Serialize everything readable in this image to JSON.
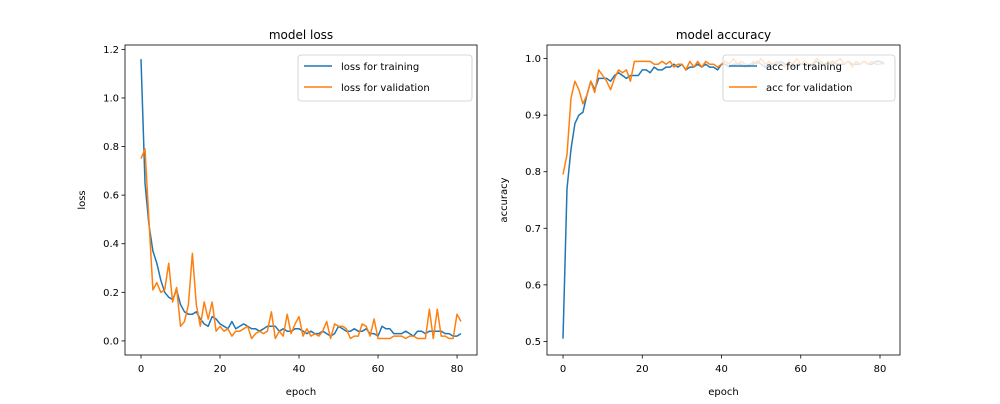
{
  "chart_data": [
    {
      "type": "line",
      "title": "model loss",
      "xlabel": "epoch",
      "ylabel": "loss",
      "xlim": [
        -4.05,
        85.05
      ],
      "ylim": [
        -0.058,
        1.218
      ],
      "xticks": [
        0,
        20,
        40,
        60,
        80
      ],
      "yticks": [
        0.0,
        0.2,
        0.4,
        0.6,
        0.8,
        1.0,
        1.2
      ],
      "ytick_labels": [
        "0.0",
        "0.2",
        "0.4",
        "0.6",
        "0.8",
        "1.0",
        "1.2"
      ],
      "legend": "top-right",
      "grid": false,
      "series": [
        {
          "name": "loss for training",
          "color": "#1f77b4",
          "values": [
            1.16,
            0.65,
            0.48,
            0.37,
            0.32,
            0.25,
            0.2,
            0.18,
            0.17,
            0.21,
            0.15,
            0.12,
            0.11,
            0.11,
            0.12,
            0.09,
            0.07,
            0.06,
            0.1,
            0.09,
            0.07,
            0.06,
            0.05,
            0.08,
            0.05,
            0.06,
            0.07,
            0.06,
            0.05,
            0.05,
            0.04,
            0.05,
            0.06,
            0.06,
            0.06,
            0.04,
            0.05,
            0.04,
            0.04,
            0.05,
            0.05,
            0.04,
            0.03,
            0.04,
            0.03,
            0.03,
            0.04,
            0.03,
            0.02,
            0.03,
            0.06,
            0.05,
            0.04,
            0.04,
            0.05,
            0.04,
            0.04,
            0.05,
            0.03,
            0.03,
            0.02,
            0.06,
            0.05,
            0.05,
            0.03,
            0.03,
            0.03,
            0.04,
            0.03,
            0.02,
            0.04,
            0.04,
            0.03,
            0.04,
            0.04,
            0.04,
            0.04,
            0.03,
            0.03,
            0.02,
            0.02,
            0.03
          ]
        },
        {
          "name": "loss for validation",
          "color": "#ff7f0e",
          "values": [
            0.75,
            0.79,
            0.5,
            0.21,
            0.24,
            0.2,
            0.21,
            0.32,
            0.16,
            0.22,
            0.06,
            0.08,
            0.15,
            0.36,
            0.15,
            0.06,
            0.16,
            0.09,
            0.16,
            0.04,
            0.06,
            0.04,
            0.05,
            0.02,
            0.04,
            0.04,
            0.05,
            0.06,
            0.01,
            0.03,
            0.04,
            0.03,
            0.04,
            0.12,
            0.01,
            0.04,
            0.02,
            0.11,
            0.03,
            0.07,
            0.1,
            0.02,
            0.05,
            0.02,
            0.03,
            0.02,
            0.04,
            0.08,
            0.01,
            0.07,
            0.06,
            0.06,
            0.05,
            0.01,
            0.02,
            0.02,
            0.07,
            0.06,
            0.02,
            0.09,
            0.01,
            0.01,
            0.01,
            0.01,
            0.02,
            0.02,
            0.02,
            0.01,
            0.02,
            0.02,
            0.01,
            0.01,
            0.01,
            0.13,
            0.01,
            0.13,
            0.02,
            0.02,
            0.01,
            0.01,
            0.11,
            0.08
          ]
        }
      ]
    },
    {
      "type": "line",
      "title": "model accuracy",
      "xlabel": "epoch",
      "ylabel": "accuracy",
      "xlim": [
        -4.05,
        85.05
      ],
      "ylim": [
        0.476,
        1.024
      ],
      "xticks": [
        0,
        20,
        40,
        60,
        80
      ],
      "yticks": [
        0.5,
        0.6,
        0.7,
        0.8,
        0.9,
        1.0
      ],
      "ytick_labels": [
        "0.5",
        "0.6",
        "0.7",
        "0.8",
        "0.9",
        "1.0"
      ],
      "legend": "top-right",
      "grid": false,
      "series": [
        {
          "name": "acc for training",
          "color": "#1f77b4",
          "values": [
            0.505,
            0.77,
            0.84,
            0.885,
            0.9,
            0.905,
            0.935,
            0.96,
            0.945,
            0.965,
            0.965,
            0.965,
            0.96,
            0.97,
            0.975,
            0.97,
            0.965,
            0.97,
            0.97,
            0.97,
            0.98,
            0.98,
            0.975,
            0.985,
            0.98,
            0.98,
            0.985,
            0.985,
            0.99,
            0.985,
            0.99,
            0.98,
            0.985,
            0.985,
            0.99,
            0.985,
            0.99,
            0.985,
            0.985,
            0.98,
            0.99,
            0.99,
            0.985,
            0.99,
            0.99,
            0.99,
            0.985,
            0.99,
            0.99,
            0.995,
            0.99,
            0.985,
            0.99,
            0.99,
            0.99,
            0.995,
            0.99,
            0.99,
            0.985,
            0.99,
            0.99,
            0.99,
            0.985,
            0.99,
            0.995,
            0.99,
            0.99,
            0.99,
            0.995,
            0.99,
            0.99,
            0.99,
            0.995,
            0.99,
            0.99,
            0.99,
            0.995,
            0.99,
            0.99,
            0.995,
            0.995,
            0.99
          ]
        },
        {
          "name": "acc for validation",
          "color": "#ff7f0e",
          "values": [
            0.795,
            0.83,
            0.93,
            0.96,
            0.945,
            0.92,
            0.935,
            0.96,
            0.94,
            0.98,
            0.97,
            0.96,
            0.945,
            0.965,
            0.98,
            0.975,
            0.98,
            0.96,
            0.995,
            0.995,
            0.995,
            0.995,
            0.995,
            0.99,
            0.99,
            0.995,
            0.99,
            0.995,
            0.985,
            0.99,
            0.99,
            0.98,
            0.995,
            0.985,
            0.995,
            0.985,
            0.995,
            0.99,
            0.99,
            0.985,
            0.99,
            0.995,
            0.99,
            1.0,
            0.99,
            0.995,
            0.99,
            0.985,
            0.995,
            0.99,
            1.0,
            0.99,
            0.995,
            0.99,
            0.995,
            0.99,
            0.985,
            0.995,
            0.99,
            1.0,
            0.99,
            0.995,
            0.99,
            0.99,
            1.0,
            0.995,
            0.99,
            0.995,
            0.99,
            0.995,
            1.0,
            0.99,
            0.995,
            0.985,
            0.995,
            0.99,
            0.995,
            0.99,
            0.995,
            0.99,
            0.99,
            0.995
          ]
        }
      ]
    }
  ]
}
